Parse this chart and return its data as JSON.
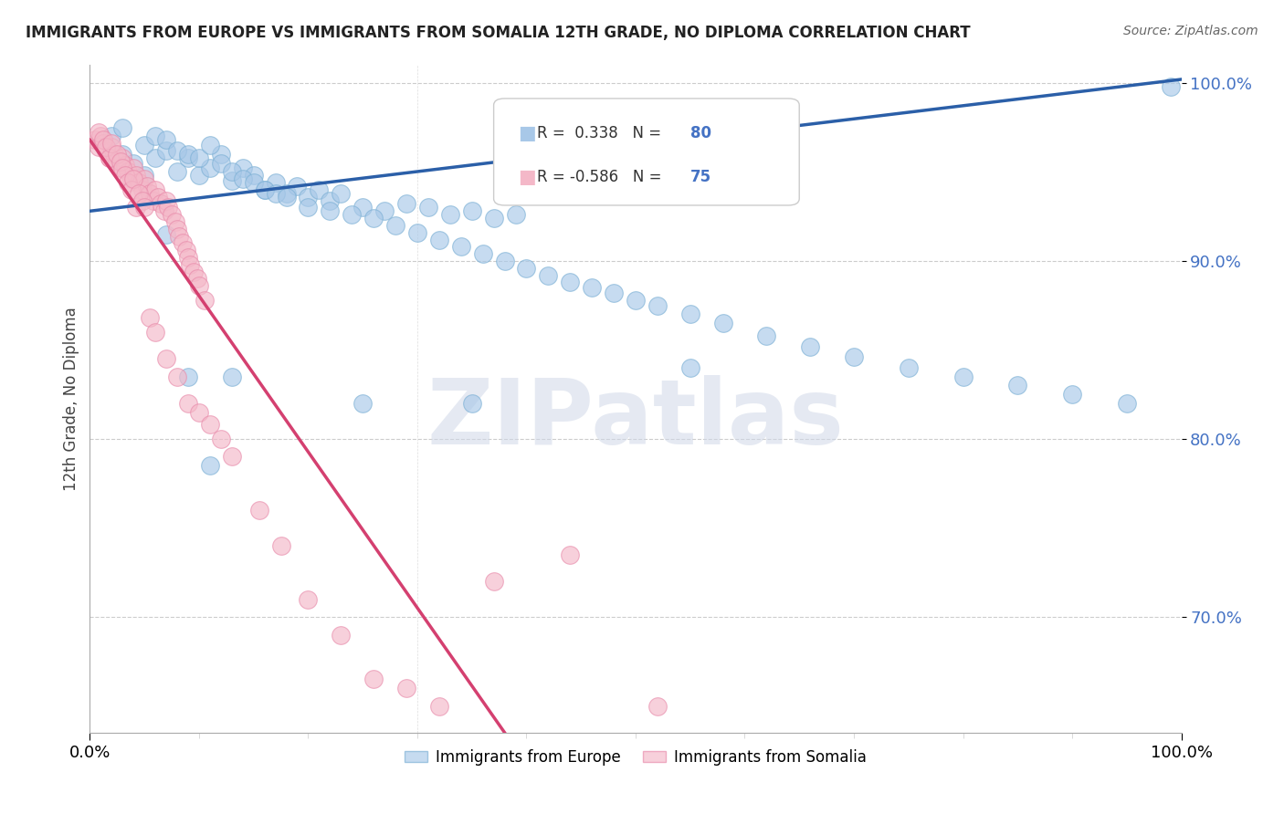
{
  "title": "IMMIGRANTS FROM EUROPE VS IMMIGRANTS FROM SOMALIA 12TH GRADE, NO DIPLOMA CORRELATION CHART",
  "source_text": "Source: ZipAtlas.com",
  "ylabel": "12th Grade, No Diploma",
  "xlim": [
    0.0,
    1.0
  ],
  "ylim": [
    0.635,
    1.01
  ],
  "yticks": [
    0.7,
    0.8,
    0.9,
    1.0
  ],
  "ytick_labels": [
    "70.0%",
    "80.0%",
    "90.0%",
    "100.0%"
  ],
  "xticks": [
    0.0,
    1.0
  ],
  "xtick_labels": [
    "0.0%",
    "100.0%"
  ],
  "blue_color": "#a8c8e8",
  "blue_edge_color": "#7aafd4",
  "blue_line_color": "#2b5fa8",
  "pink_color": "#f4b8c8",
  "pink_edge_color": "#e88aaa",
  "pink_line_color": "#d44070",
  "legend_blue_label": "Immigrants from Europe",
  "legend_pink_label": "Immigrants from Somalia",
  "R_blue": 0.338,
  "N_blue": 80,
  "R_pink": -0.586,
  "N_pink": 75,
  "watermark": "ZIPatlas",
  "blue_line_x0": 0.0,
  "blue_line_y0": 0.928,
  "blue_line_x1": 1.0,
  "blue_line_y1": 1.002,
  "pink_line_x0": 0.0,
  "pink_line_y0": 0.968,
  "pink_line_x1": 0.38,
  "pink_line_y1": 0.635,
  "blue_scatter_x": [
    0.02,
    0.03,
    0.04,
    0.05,
    0.06,
    0.07,
    0.08,
    0.09,
    0.1,
    0.11,
    0.12,
    0.13,
    0.14,
    0.15,
    0.16,
    0.17,
    0.18,
    0.19,
    0.2,
    0.21,
    0.22,
    0.23,
    0.25,
    0.27,
    0.29,
    0.31,
    0.33,
    0.35,
    0.37,
    0.39,
    0.06,
    0.07,
    0.08,
    0.09,
    0.1,
    0.11,
    0.12,
    0.13,
    0.14,
    0.15,
    0.16,
    0.17,
    0.18,
    0.2,
    0.22,
    0.24,
    0.26,
    0.28,
    0.3,
    0.32,
    0.34,
    0.36,
    0.38,
    0.4,
    0.42,
    0.44,
    0.46,
    0.48,
    0.5,
    0.52,
    0.55,
    0.58,
    0.62,
    0.66,
    0.7,
    0.75,
    0.8,
    0.85,
    0.9,
    0.95,
    0.03,
    0.05,
    0.07,
    0.09,
    0.11,
    0.13,
    0.25,
    0.35,
    0.55,
    0.99
  ],
  "blue_scatter_y": [
    0.97,
    0.96,
    0.955,
    0.965,
    0.958,
    0.962,
    0.95,
    0.958,
    0.948,
    0.952,
    0.96,
    0.945,
    0.952,
    0.948,
    0.94,
    0.944,
    0.938,
    0.942,
    0.936,
    0.94,
    0.934,
    0.938,
    0.93,
    0.928,
    0.932,
    0.93,
    0.926,
    0.928,
    0.924,
    0.926,
    0.97,
    0.968,
    0.962,
    0.96,
    0.958,
    0.965,
    0.955,
    0.95,
    0.946,
    0.944,
    0.94,
    0.938,
    0.936,
    0.93,
    0.928,
    0.926,
    0.924,
    0.92,
    0.916,
    0.912,
    0.908,
    0.904,
    0.9,
    0.896,
    0.892,
    0.888,
    0.885,
    0.882,
    0.878,
    0.875,
    0.87,
    0.865,
    0.858,
    0.852,
    0.846,
    0.84,
    0.835,
    0.83,
    0.825,
    0.82,
    0.975,
    0.948,
    0.915,
    0.835,
    0.785,
    0.835,
    0.82,
    0.82,
    0.84,
    0.998
  ],
  "pink_scatter_x": [
    0.005,
    0.008,
    0.01,
    0.012,
    0.015,
    0.018,
    0.02,
    0.022,
    0.025,
    0.028,
    0.03,
    0.032,
    0.035,
    0.038,
    0.04,
    0.042,
    0.045,
    0.048,
    0.05,
    0.052,
    0.055,
    0.058,
    0.06,
    0.062,
    0.065,
    0.068,
    0.07,
    0.072,
    0.075,
    0.078,
    0.08,
    0.082,
    0.085,
    0.088,
    0.09,
    0.092,
    0.095,
    0.098,
    0.1,
    0.105,
    0.008,
    0.012,
    0.015,
    0.018,
    0.02,
    0.025,
    0.028,
    0.03,
    0.032,
    0.035,
    0.038,
    0.04,
    0.042,
    0.045,
    0.048,
    0.05,
    0.055,
    0.06,
    0.07,
    0.08,
    0.09,
    0.1,
    0.11,
    0.12,
    0.13,
    0.155,
    0.175,
    0.2,
    0.23,
    0.26,
    0.29,
    0.32,
    0.37,
    0.44,
    0.52
  ],
  "pink_scatter_y": [
    0.968,
    0.964,
    0.97,
    0.966,
    0.962,
    0.958,
    0.964,
    0.96,
    0.956,
    0.952,
    0.958,
    0.954,
    0.95,
    0.946,
    0.952,
    0.948,
    0.944,
    0.94,
    0.946,
    0.942,
    0.938,
    0.934,
    0.94,
    0.936,
    0.932,
    0.928,
    0.934,
    0.93,
    0.926,
    0.922,
    0.918,
    0.914,
    0.91,
    0.906,
    0.902,
    0.898,
    0.894,
    0.89,
    0.886,
    0.878,
    0.972,
    0.968,
    0.964,
    0.958,
    0.966,
    0.96,
    0.956,
    0.952,
    0.948,
    0.944,
    0.94,
    0.946,
    0.93,
    0.938,
    0.934,
    0.93,
    0.868,
    0.86,
    0.845,
    0.835,
    0.82,
    0.815,
    0.808,
    0.8,
    0.79,
    0.76,
    0.74,
    0.71,
    0.69,
    0.665,
    0.66,
    0.65,
    0.72,
    0.735,
    0.65
  ]
}
